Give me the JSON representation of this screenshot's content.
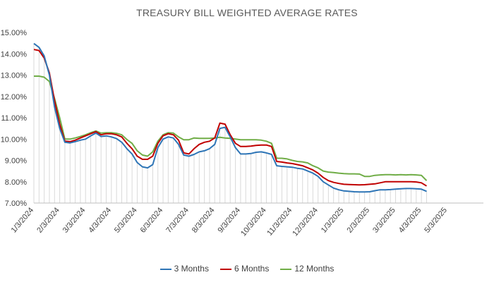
{
  "chart_data": {
    "type": "line",
    "title": "TREASURY BILL WEIGHTED AVERAGE RATES",
    "xlabel": "",
    "ylabel": "",
    "ylim": [
      7.0,
      15.0
    ],
    "yticks": [
      "7.00%",
      "8.00%",
      "9.00%",
      "10.00%",
      "11.00%",
      "12.00%",
      "13.00%",
      "14.00%",
      "15.00%"
    ],
    "x_tick_labels": [
      "1/3/2024",
      "2/3/2024",
      "3/3/2024",
      "4/3/2024",
      "5/3/2024",
      "6/3/2024",
      "7/3/2024",
      "8/3/2024",
      "9/3/2024",
      "10/3/2024",
      "11/3/2024",
      "12/3/2024",
      "1/3/2025",
      "2/3/2025",
      "3/3/2025",
      "4/3/2025",
      "5/3/2025"
    ],
    "x_range": [
      0,
      17.4
    ],
    "grid": "vertical-minor",
    "legend_position": "bottom",
    "colors": {
      "3 Months": "#2e75b6",
      "6 Months": "#c00000",
      "12 Months": "#70ad47"
    },
    "series": [
      {
        "name": "3 Months",
        "points": [
          [
            0,
            14.48
          ],
          [
            0.2,
            14.3
          ],
          [
            0.4,
            13.9
          ],
          [
            0.6,
            13.0
          ],
          [
            0.8,
            11.5
          ],
          [
            1.0,
            10.5
          ],
          [
            1.2,
            9.85
          ],
          [
            1.4,
            9.82
          ],
          [
            1.6,
            9.88
          ],
          [
            1.8,
            9.95
          ],
          [
            2.0,
            10.0
          ],
          [
            2.2,
            10.15
          ],
          [
            2.4,
            10.28
          ],
          [
            2.6,
            10.12
          ],
          [
            2.8,
            10.15
          ],
          [
            3.0,
            10.1
          ],
          [
            3.2,
            10.02
          ],
          [
            3.4,
            9.85
          ],
          [
            3.6,
            9.55
          ],
          [
            3.8,
            9.3
          ],
          [
            4.0,
            8.9
          ],
          [
            4.2,
            8.7
          ],
          [
            4.4,
            8.65
          ],
          [
            4.6,
            8.8
          ],
          [
            4.8,
            9.6
          ],
          [
            5.0,
            10.0
          ],
          [
            5.2,
            10.1
          ],
          [
            5.4,
            10.05
          ],
          [
            5.6,
            9.75
          ],
          [
            5.8,
            9.25
          ],
          [
            6.0,
            9.2
          ],
          [
            6.2,
            9.28
          ],
          [
            6.4,
            9.4
          ],
          [
            6.6,
            9.45
          ],
          [
            6.8,
            9.55
          ],
          [
            7.0,
            9.75
          ],
          [
            7.2,
            10.5
          ],
          [
            7.4,
            10.55
          ],
          [
            7.6,
            10.1
          ],
          [
            7.8,
            9.6
          ],
          [
            8.0,
            9.3
          ],
          [
            8.2,
            9.3
          ],
          [
            8.4,
            9.32
          ],
          [
            8.6,
            9.38
          ],
          [
            8.8,
            9.4
          ],
          [
            9.0,
            9.35
          ],
          [
            9.2,
            9.28
          ],
          [
            9.4,
            8.75
          ],
          [
            9.6,
            8.72
          ],
          [
            9.8,
            8.7
          ],
          [
            10.0,
            8.68
          ],
          [
            10.2,
            8.63
          ],
          [
            10.4,
            8.6
          ],
          [
            10.6,
            8.5
          ],
          [
            10.8,
            8.4
          ],
          [
            11.0,
            8.25
          ],
          [
            11.2,
            8.0
          ],
          [
            11.4,
            7.85
          ],
          [
            11.6,
            7.7
          ],
          [
            11.8,
            7.62
          ],
          [
            12.0,
            7.57
          ],
          [
            12.2,
            7.55
          ],
          [
            12.4,
            7.53
          ],
          [
            12.6,
            7.52
          ],
          [
            12.8,
            7.52
          ],
          [
            13.0,
            7.53
          ],
          [
            13.2,
            7.58
          ],
          [
            13.4,
            7.62
          ],
          [
            13.6,
            7.62
          ],
          [
            13.8,
            7.63
          ],
          [
            14.0,
            7.65
          ],
          [
            14.2,
            7.67
          ],
          [
            14.4,
            7.68
          ],
          [
            14.6,
            7.68
          ],
          [
            14.8,
            7.67
          ],
          [
            15.0,
            7.65
          ],
          [
            15.2,
            7.55
          ]
        ]
      },
      {
        "name": "6 Months",
        "points": [
          [
            0,
            14.2
          ],
          [
            0.2,
            14.15
          ],
          [
            0.4,
            13.8
          ],
          [
            0.6,
            13.1
          ],
          [
            0.8,
            11.8
          ],
          [
            1.0,
            10.7
          ],
          [
            1.2,
            9.9
          ],
          [
            1.4,
            9.88
          ],
          [
            1.6,
            9.95
          ],
          [
            1.8,
            10.05
          ],
          [
            2.0,
            10.15
          ],
          [
            2.2,
            10.25
          ],
          [
            2.4,
            10.35
          ],
          [
            2.6,
            10.2
          ],
          [
            2.8,
            10.25
          ],
          [
            3.0,
            10.25
          ],
          [
            3.2,
            10.2
          ],
          [
            3.4,
            10.1
          ],
          [
            3.6,
            9.8
          ],
          [
            3.8,
            9.55
          ],
          [
            4.0,
            9.2
          ],
          [
            4.2,
            9.05
          ],
          [
            4.4,
            9.05
          ],
          [
            4.6,
            9.2
          ],
          [
            4.8,
            9.8
          ],
          [
            5.0,
            10.15
          ],
          [
            5.2,
            10.25
          ],
          [
            5.4,
            10.2
          ],
          [
            5.6,
            9.95
          ],
          [
            5.8,
            9.35
          ],
          [
            6.0,
            9.3
          ],
          [
            6.2,
            9.55
          ],
          [
            6.4,
            9.75
          ],
          [
            6.6,
            9.85
          ],
          [
            6.8,
            9.9
          ],
          [
            7.0,
            10.05
          ],
          [
            7.2,
            10.75
          ],
          [
            7.4,
            10.7
          ],
          [
            7.6,
            10.2
          ],
          [
            7.8,
            9.8
          ],
          [
            8.0,
            9.65
          ],
          [
            8.2,
            9.65
          ],
          [
            8.4,
            9.67
          ],
          [
            8.6,
            9.7
          ],
          [
            8.8,
            9.72
          ],
          [
            9.0,
            9.72
          ],
          [
            9.2,
            9.65
          ],
          [
            9.4,
            8.95
          ],
          [
            9.6,
            8.92
          ],
          [
            9.8,
            8.88
          ],
          [
            10.0,
            8.85
          ],
          [
            10.2,
            8.8
          ],
          [
            10.4,
            8.75
          ],
          [
            10.6,
            8.65
          ],
          [
            10.8,
            8.55
          ],
          [
            11.0,
            8.4
          ],
          [
            11.2,
            8.2
          ],
          [
            11.4,
            8.05
          ],
          [
            11.6,
            7.97
          ],
          [
            11.8,
            7.92
          ],
          [
            12.0,
            7.88
          ],
          [
            12.2,
            7.87
          ],
          [
            12.4,
            7.86
          ],
          [
            12.6,
            7.85
          ],
          [
            12.8,
            7.86
          ],
          [
            13.0,
            7.88
          ],
          [
            13.2,
            7.9
          ],
          [
            13.4,
            7.95
          ],
          [
            13.6,
            8.0
          ],
          [
            13.8,
            8.0
          ],
          [
            14.0,
            8.0
          ],
          [
            14.2,
            8.0
          ],
          [
            14.4,
            8.0
          ],
          [
            14.6,
            8.0
          ],
          [
            14.8,
            7.99
          ],
          [
            15.0,
            7.95
          ],
          [
            15.2,
            7.8
          ]
        ]
      },
      {
        "name": "12 Months",
        "points": [
          [
            0,
            12.95
          ],
          [
            0.2,
            12.95
          ],
          [
            0.4,
            12.9
          ],
          [
            0.6,
            12.7
          ],
          [
            0.8,
            11.9
          ],
          [
            1.0,
            11.0
          ],
          [
            1.2,
            10.0
          ],
          [
            1.4,
            10.0
          ],
          [
            1.6,
            10.05
          ],
          [
            1.8,
            10.12
          ],
          [
            2.0,
            10.2
          ],
          [
            2.2,
            10.3
          ],
          [
            2.4,
            10.38
          ],
          [
            2.6,
            10.28
          ],
          [
            2.8,
            10.3
          ],
          [
            3.0,
            10.3
          ],
          [
            3.2,
            10.27
          ],
          [
            3.4,
            10.2
          ],
          [
            3.6,
            9.98
          ],
          [
            3.8,
            9.8
          ],
          [
            4.0,
            9.45
          ],
          [
            4.2,
            9.25
          ],
          [
            4.4,
            9.2
          ],
          [
            4.6,
            9.4
          ],
          [
            4.8,
            9.9
          ],
          [
            5.0,
            10.2
          ],
          [
            5.2,
            10.3
          ],
          [
            5.4,
            10.28
          ],
          [
            5.6,
            10.1
          ],
          [
            5.8,
            9.97
          ],
          [
            6.0,
            9.97
          ],
          [
            6.2,
            10.05
          ],
          [
            6.4,
            10.03
          ],
          [
            6.6,
            10.03
          ],
          [
            6.8,
            10.03
          ],
          [
            7.0,
            10.05
          ],
          [
            7.2,
            10.08
          ],
          [
            7.4,
            10.05
          ],
          [
            7.6,
            10.03
          ],
          [
            7.8,
            10.0
          ],
          [
            8.0,
            9.97
          ],
          [
            8.2,
            9.97
          ],
          [
            8.4,
            9.97
          ],
          [
            8.6,
            9.97
          ],
          [
            8.8,
            9.95
          ],
          [
            9.0,
            9.9
          ],
          [
            9.2,
            9.8
          ],
          [
            9.4,
            9.1
          ],
          [
            9.6,
            9.1
          ],
          [
            9.8,
            9.07
          ],
          [
            10.0,
            9.0
          ],
          [
            10.2,
            8.95
          ],
          [
            10.4,
            8.93
          ],
          [
            10.6,
            8.88
          ],
          [
            10.8,
            8.75
          ],
          [
            11.0,
            8.65
          ],
          [
            11.2,
            8.5
          ],
          [
            11.4,
            8.45
          ],
          [
            11.6,
            8.43
          ],
          [
            11.8,
            8.4
          ],
          [
            12.0,
            8.38
          ],
          [
            12.2,
            8.37
          ],
          [
            12.4,
            8.37
          ],
          [
            12.6,
            8.36
          ],
          [
            12.8,
            8.25
          ],
          [
            13.0,
            8.25
          ],
          [
            13.2,
            8.3
          ],
          [
            13.4,
            8.32
          ],
          [
            13.6,
            8.33
          ],
          [
            13.8,
            8.33
          ],
          [
            14.0,
            8.32
          ],
          [
            14.2,
            8.33
          ],
          [
            14.4,
            8.32
          ],
          [
            14.6,
            8.33
          ],
          [
            14.8,
            8.32
          ],
          [
            15.0,
            8.3
          ],
          [
            15.2,
            8.05
          ]
        ]
      }
    ]
  }
}
